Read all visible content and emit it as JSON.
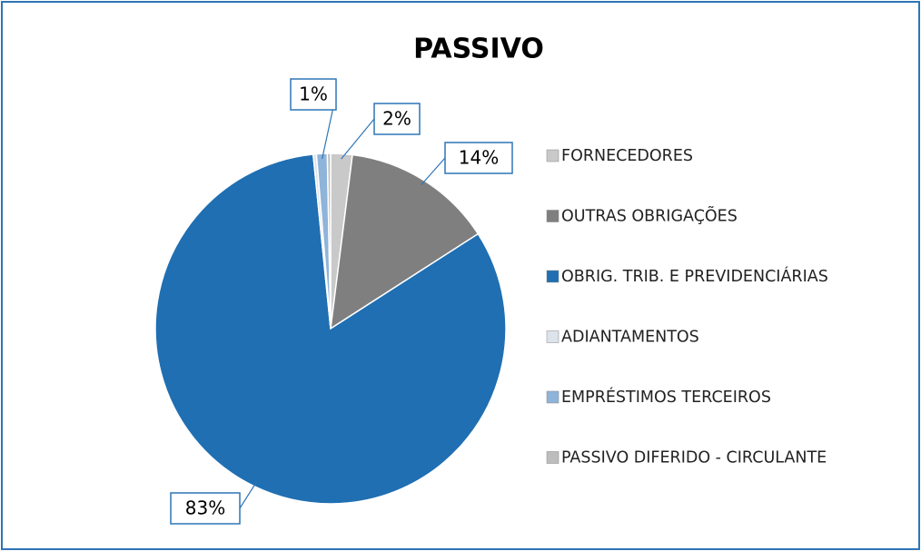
{
  "chart_data": {
    "type": "pie",
    "title": "PASSIVO",
    "categories": [
      "FORNECEDORES",
      "OUTRAS OBRIGAÇÕES",
      "OBRIG. TRIB. E PREVIDENCIÁRIAS",
      "ADIANTAMENTOS",
      "EMPRÉSTIMOS TERCEIROS",
      "PASSIVO DIFERIDO - CIRCULANTE"
    ],
    "values": [
      2,
      14,
      83,
      0.3,
      1,
      0.3
    ],
    "value_labels": [
      "2%",
      "14%",
      "83%",
      null,
      "1%",
      null
    ],
    "colors": [
      "#c9c9c9",
      "#7f7f7f",
      "#1f6fb2",
      "#dde3ea",
      "#8fb4d9",
      "#bdbdbd"
    ],
    "legend": "right"
  }
}
